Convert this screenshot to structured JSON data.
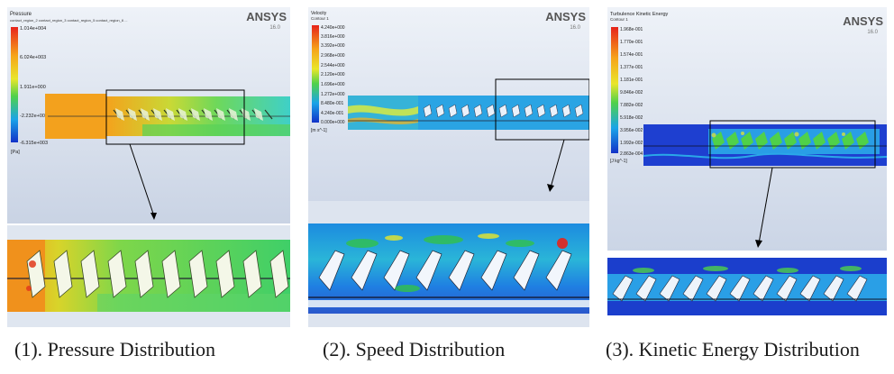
{
  "panels": [
    {
      "caption": "(1). Pressure Distribution",
      "brand": "ANSYS",
      "version": "16.0",
      "legend_title": "Pressure",
      "legend_subtitle": "contact_region_2 contact_region_3 contact_region_5 contact_region_6 ...",
      "legend_values": [
        "1.014e+004",
        "6.024e+003",
        "1.911e+000",
        "-2.232e+003",
        "-6.315e+003"
      ],
      "legend_unit": "[Pa]"
    },
    {
      "caption": "(2). Speed Distribution",
      "brand": "ANSYS",
      "version": "16.0",
      "legend_title": "Velocity",
      "legend_subtitle": "Contour 1",
      "legend_values": [
        "4.240e+000",
        "3.816e+000",
        "3.392e+000",
        "2.968e+000",
        "2.544e+000",
        "2.120e+000",
        "1.696e+000",
        "1.272e+000",
        "8.480e-001",
        "4.240e-001",
        "0.000e+000"
      ],
      "legend_unit": "[m s^-1]"
    },
    {
      "caption": "(3). Kinetic Energy Distribution",
      "brand": "ANSYS",
      "version": "16.0",
      "legend_title": "Turbulence Kinetic Energy",
      "legend_subtitle": "Contour 1",
      "legend_values": [
        "1.968e-001",
        "1.770e-001",
        "1.574e-001",
        "1.377e-001",
        "1.181e-001",
        "9.846e-002",
        "7.882e-002",
        "5.918e-002",
        "3.956e-002",
        "1.992e-002",
        "2.863e-004"
      ],
      "legend_unit": "[J kg^-1]"
    }
  ],
  "colors": {
    "sky": "#e6ecf6",
    "frame": "#000000"
  }
}
